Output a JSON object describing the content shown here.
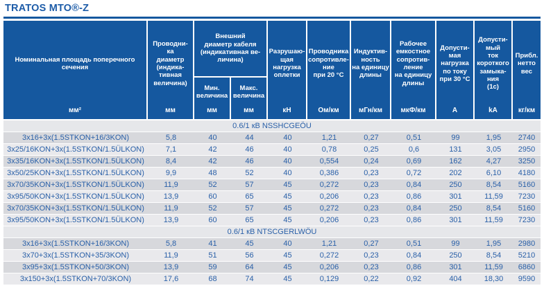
{
  "title": {
    "text": "TRATOS MTO®-",
    "suffix": "Z"
  },
  "colors": {
    "header_bg": "#15589f",
    "text_blue": "#2a60a8",
    "title_blue": "#1d5ca8",
    "row_dark": "#d7d8dc",
    "row_light": "#e9e9ec",
    "section_bg": "#e6e7ea"
  },
  "table": {
    "columns": [
      {
        "label": "Номинальная площадь поперечного\nсечения",
        "unit": "мм²"
      },
      {
        "label": "Проводни-\nка\nдиаметр\n(индика-\nтивная\nвеличина)",
        "unit": "мм"
      },
      {
        "label": "Разрушаю-\nщая\nнагрузка\nоплетки",
        "unit": "кН"
      },
      {
        "label": "Проводника\nсопротивле-\nние\nпри 20 °C",
        "unit": "Ом/км"
      },
      {
        "label": "Индуктив-\nность\nна единицу\nдлины",
        "unit": "мГн/км"
      },
      {
        "label": "Рабочее\nемкостное\nсопротив-\nление\nна единицу\nдлины",
        "unit": "мкФ/км"
      },
      {
        "label": "Допусти-\nмая\nнагрузка\nпо току\nпри 30 °C",
        "unit": "А"
      },
      {
        "label": "Допусти-\nмый\nток\nкороткого\nзамыка-\nния\n(1с)",
        "unit": "kA"
      },
      {
        "label": "Прибл.\nнетто\nвес",
        "unit": "кг/км"
      }
    ],
    "outer_diameter_group": {
      "label": "Внешний\nдиаметр кабеля\n(индикативная ве-\nличина)",
      "sub": [
        {
          "label": "Мин.\nвеличина",
          "unit": "мм"
        },
        {
          "label": "Макс.\nвеличина",
          "unit": "мм"
        }
      ]
    },
    "sections": [
      {
        "heading": "0.6/1 кВ NSSHCGEÖU",
        "rows": [
          [
            "3x16+3x(1.5STKON+16/3KON)",
            "5,8",
            "40",
            "44",
            "40",
            "1,21",
            "0,27",
            "0,51",
            "99",
            "1,95",
            "2740"
          ],
          [
            "3x25/16KON+3x(1.5STKON/1.5ÜLKON)",
            "7,1",
            "42",
            "46",
            "40",
            "0,78",
            "0,25",
            "0,6",
            "131",
            "3,05",
            "2950"
          ],
          [
            "3x35/16KON+3x(1.5STKON/1.5ÜLKON)",
            "8,4",
            "42",
            "46",
            "40",
            "0,554",
            "0,24",
            "0,69",
            "162",
            "4,27",
            "3250"
          ],
          [
            "3x50/25KON+3x(1.5STKON/1.5ÜLKON)",
            "9,9",
            "48",
            "52",
            "40",
            "0,386",
            "0,23",
            "0,72",
            "202",
            "6,10",
            "4180"
          ],
          [
            "3x70/35KON+3x(1.5STKON/1.5ÜLKON)",
            "11,9",
            "52",
            "57",
            "45",
            "0,272",
            "0,23",
            "0,84",
            "250",
            "8,54",
            "5160"
          ],
          [
            "3x95/50KON+3x(1.5STKON/1.5ÜLKON)",
            "13,9",
            "60",
            "65",
            "45",
            "0,206",
            "0,23",
            "0,86",
            "301",
            "11,59",
            "7230"
          ],
          [
            "3x70/35KON+3x(1.5STKON/1.5ÜLKON)",
            "11,9",
            "52",
            "57",
            "45",
            "0,272",
            "0,23",
            "0,84",
            "250",
            "8,54",
            "5160"
          ],
          [
            "3x95/50KON+3x(1.5STKON/1.5ÜLKON)",
            "13,9",
            "60",
            "65",
            "45",
            "0,206",
            "0,23",
            "0,86",
            "301",
            "11,59",
            "7230"
          ]
        ]
      },
      {
        "heading": "0.6/1 кВ NTSCGERLWÖU",
        "rows": [
          [
            "3x16+3x(1.5STKON+16/3KON)",
            "5,8",
            "41",
            "45",
            "40",
            "1,21",
            "0,27",
            "0,51",
            "99",
            "1,95",
            "2980"
          ],
          [
            "3x70+3x(1.5STKON+35/3KON)",
            "11,9",
            "51",
            "56",
            "45",
            "0,272",
            "0,23",
            "0,84",
            "250",
            "8,54",
            "5210"
          ],
          [
            "3x95+3x(1.5STKON+50/3KON)",
            "13,9",
            "59",
            "64",
            "45",
            "0,206",
            "0,23",
            "0,86",
            "301",
            "11,59",
            "6860"
          ],
          [
            "3x150+3x(1.5STKON+70/3KON)",
            "17,6",
            "68",
            "74",
            "45",
            "0,129",
            "0,22",
            "0,92",
            "404",
            "18,30",
            "9590"
          ]
        ]
      }
    ]
  }
}
